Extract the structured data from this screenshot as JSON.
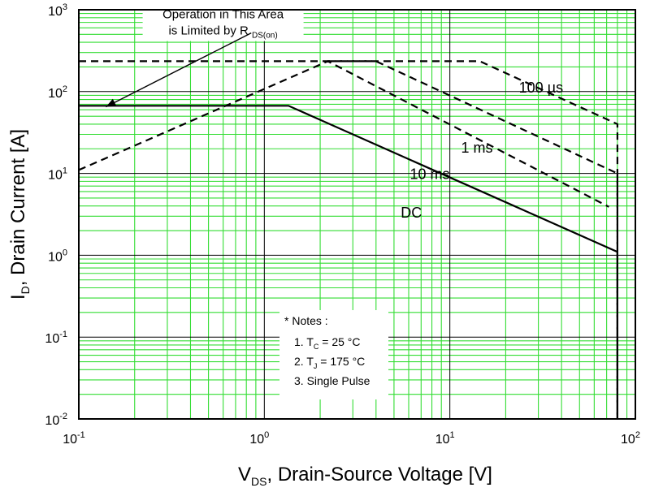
{
  "chart_data": {
    "type": "line",
    "x_scale": "log",
    "y_scale": "log",
    "xlim": [
      0.1,
      100
    ],
    "ylim": [
      0.01,
      1000
    ],
    "grid": true,
    "colors": {
      "grid_minor": "#33dd33",
      "grid_major": "#000000",
      "series": "#000000"
    },
    "x_ticks": [
      {
        "value": 0.1,
        "base": "10",
        "exp": "-1"
      },
      {
        "value": 1,
        "base": "10",
        "exp": "0"
      },
      {
        "value": 10,
        "base": "10",
        "exp": "1"
      },
      {
        "value": 100,
        "base": "10",
        "exp": "2"
      }
    ],
    "y_ticks": [
      {
        "value": 0.01,
        "base": "10",
        "exp": "-2"
      },
      {
        "value": 0.1,
        "base": "10",
        "exp": "-1"
      },
      {
        "value": 1,
        "base": "10",
        "exp": "0"
      },
      {
        "value": 10,
        "base": "10",
        "exp": "1"
      },
      {
        "value": 100,
        "base": "10",
        "exp": "2"
      },
      {
        "value": 1000,
        "base": "10",
        "exp": "3"
      }
    ],
    "xlabel": {
      "main": "V",
      "sub": "DS",
      "rest": ", Drain-Source Voltage [V]"
    },
    "ylabel": {
      "main": "I",
      "sub": "D",
      "rest": ", Drain Current [A]"
    },
    "series": [
      {
        "name": "100 µs",
        "label_parts": [
          "100 ",
          "µ",
          "s"
        ],
        "style": "dashed",
        "points": [
          [
            0.1,
            235
          ],
          [
            14.5,
            235
          ],
          [
            80,
            40
          ],
          [
            80,
            0.01
          ]
        ],
        "label_at": [
          31,
          97
        ]
      },
      {
        "name": "1 ms",
        "label_parts": [
          "1 ms"
        ],
        "style": "dashed",
        "points": [
          [
            2.2,
            235
          ],
          [
            4,
            235
          ],
          [
            80,
            10
          ],
          [
            80,
            0.01
          ]
        ],
        "label_at": [
          14,
          18
        ]
      },
      {
        "name": "10 ms",
        "label_parts": [
          "10 ms"
        ],
        "style": "dashed",
        "points": [
          [
            0.1,
            11
          ],
          [
            2.2,
            235
          ],
          [
            72,
            3.9
          ]
        ],
        "label_at": [
          7.8,
          8.5
        ]
      },
      {
        "name": "DC",
        "label_parts": [
          "DC"
        ],
        "style": "solid",
        "points": [
          [
            0.1,
            67
          ],
          [
            1.35,
            67
          ],
          [
            80,
            1.1
          ],
          [
            80,
            0.01
          ]
        ],
        "label_at": [
          6.2,
          2.9
        ]
      }
    ],
    "annotation": {
      "line1": "Operation in This Area",
      "line2_main": "is Limited by R ",
      "line2_sub": "DS(on)",
      "text_at": [
        0.5,
        750
      ],
      "arrow_from": [
        0.85,
        520
      ],
      "arrow_to": [
        0.14,
        65
      ]
    },
    "notes": {
      "title": "* Notes :",
      "items": [
        {
          "prefix": "1. T",
          "sub": "C",
          "suffix": " = 25 °C"
        },
        {
          "prefix": "2. T",
          "sub": "J",
          "suffix": " = 175 °C"
        },
        {
          "prefix": "3. Single Pulse",
          "sub": "",
          "suffix": ""
        }
      ]
    }
  }
}
